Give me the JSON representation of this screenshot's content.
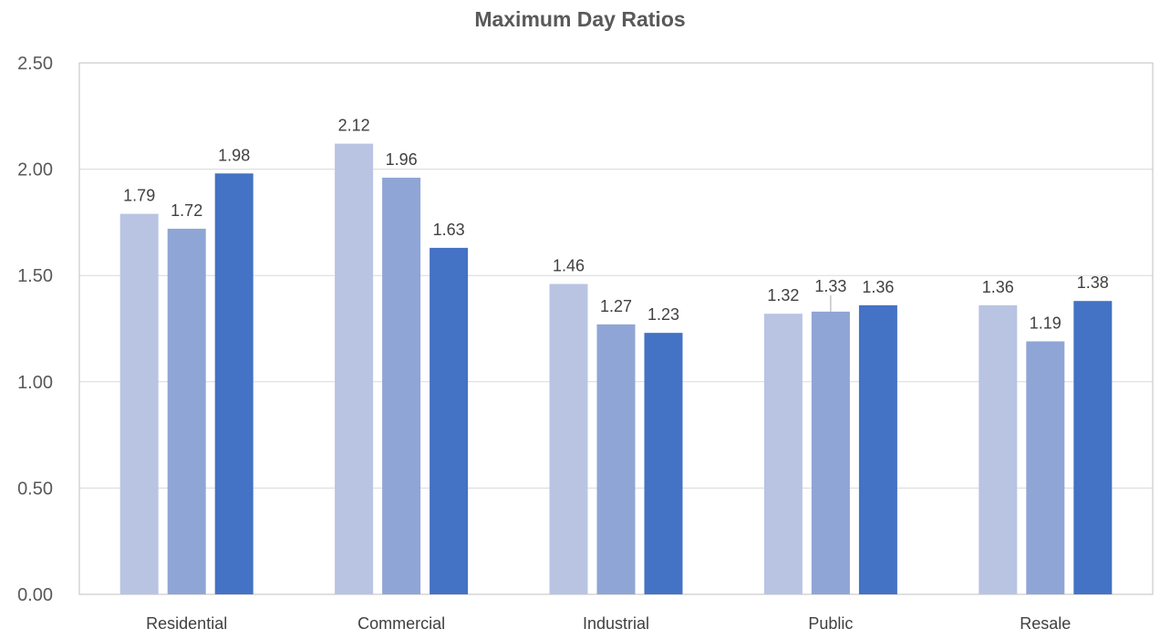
{
  "chart_data": {
    "type": "bar",
    "title": "Maximum Day Ratios",
    "xlabel": "",
    "ylabel": "",
    "ylim": [
      0,
      2.5
    ],
    "y_ticks": [
      "0.00",
      "0.50",
      "1.00",
      "1.50",
      "2.00",
      "2.50"
    ],
    "grid": true,
    "legend": "none",
    "categories": [
      "Residential",
      "Commercial",
      "Industrial",
      "Public",
      "Resale"
    ],
    "series": [
      {
        "color": "#b9c4e3",
        "values": [
          1.79,
          2.12,
          1.46,
          1.32,
          1.36
        ],
        "labels": [
          "1.79",
          "2.12",
          "1.46",
          "1.32",
          "1.36"
        ]
      },
      {
        "color": "#8fa5d5",
        "values": [
          1.72,
          1.96,
          1.27,
          1.33,
          1.19
        ],
        "labels": [
          "1.72",
          "1.96",
          "1.27",
          "1.33",
          "1.19"
        ]
      },
      {
        "color": "#4472c4",
        "values": [
          1.98,
          1.63,
          1.23,
          1.36,
          1.38
        ],
        "labels": [
          "1.98",
          "1.63",
          "1.23",
          "1.36",
          "1.38"
        ]
      }
    ]
  }
}
